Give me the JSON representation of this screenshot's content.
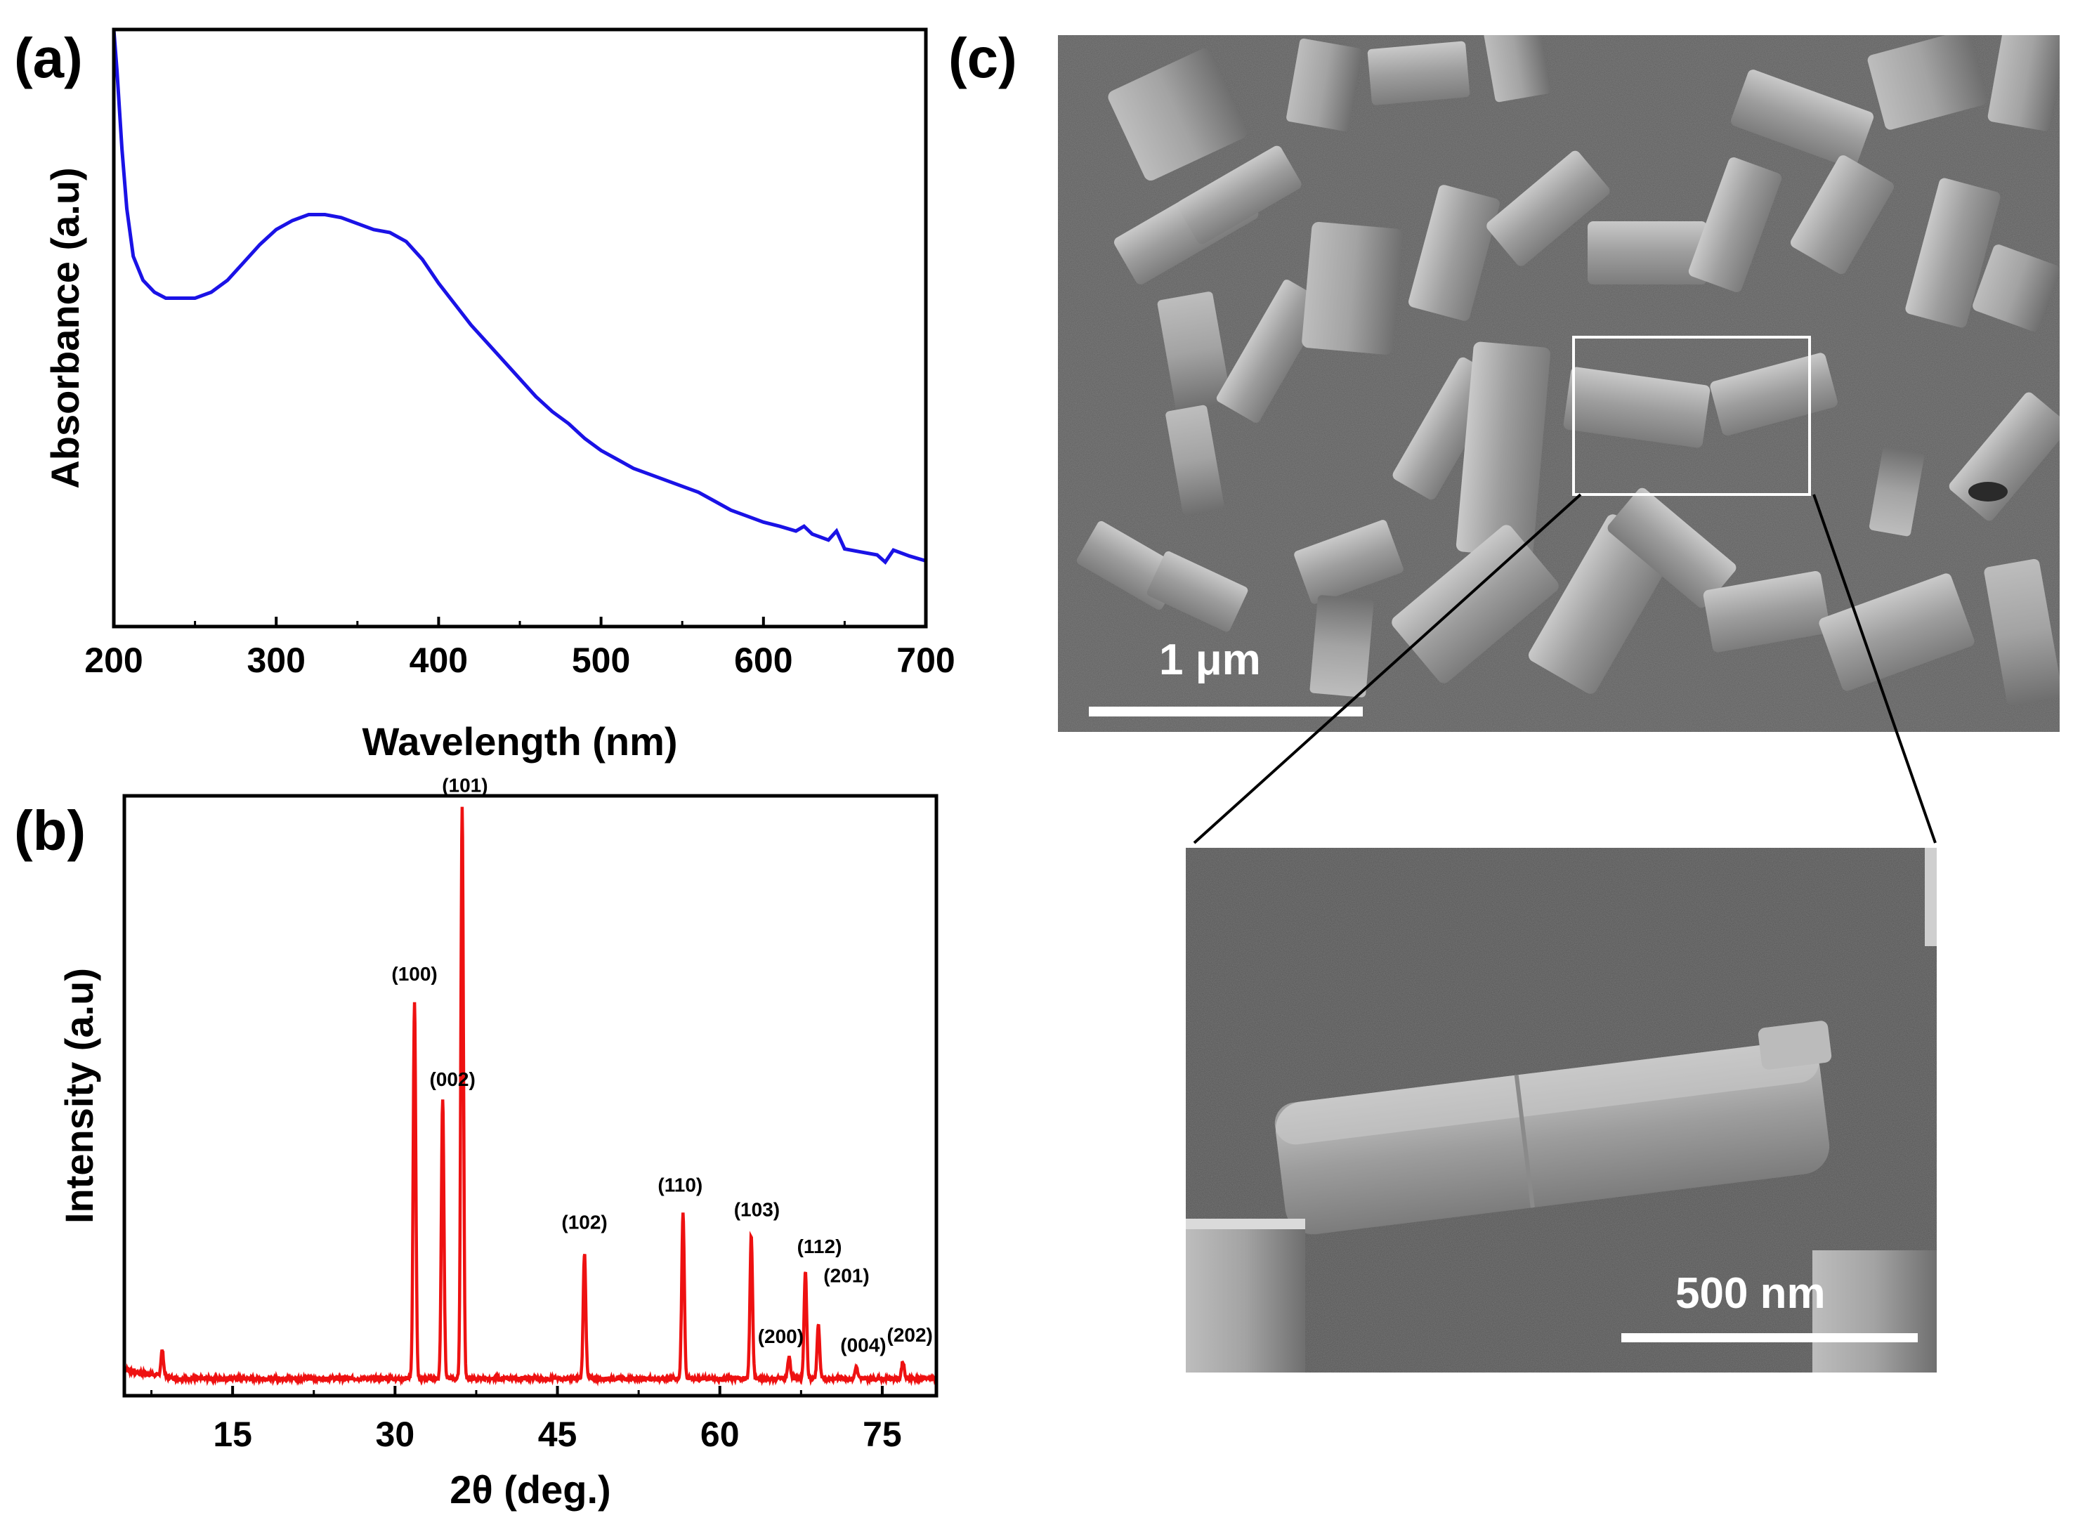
{
  "figure": {
    "panels": [
      "(a)",
      "(b)",
      "(c)"
    ]
  },
  "chart_data": [
    {
      "type": "line",
      "panel": "(a)",
      "xlabel": "Wavelength (nm)",
      "ylabel": "Absorbance (a.u)",
      "xlim": [
        200,
        700
      ],
      "ylim": [
        0,
        1
      ],
      "xticks": [
        200,
        300,
        400,
        500,
        600,
        700
      ],
      "y_tick_labels": false,
      "color": "#1a12e6",
      "series": [
        {
          "x": [
            200,
            202,
            205,
            208,
            212,
            218,
            225,
            232,
            240,
            250,
            260,
            270,
            280,
            290,
            300,
            310,
            320,
            330,
            340,
            350,
            360,
            370,
            380,
            390,
            400,
            410,
            420,
            430,
            440,
            450,
            460,
            470,
            480,
            490,
            500,
            510,
            520,
            530,
            540,
            550,
            560,
            570,
            580,
            590,
            600,
            610,
            620,
            625,
            630,
            640,
            645,
            650,
            660,
            670,
            675,
            680,
            690,
            700
          ],
          "y": [
            1.0,
            0.93,
            0.8,
            0.7,
            0.62,
            0.58,
            0.56,
            0.55,
            0.55,
            0.55,
            0.56,
            0.58,
            0.61,
            0.64,
            0.665,
            0.68,
            0.69,
            0.69,
            0.685,
            0.675,
            0.665,
            0.66,
            0.645,
            0.615,
            0.575,
            0.54,
            0.505,
            0.475,
            0.445,
            0.415,
            0.385,
            0.36,
            0.34,
            0.315,
            0.295,
            0.28,
            0.265,
            0.255,
            0.245,
            0.235,
            0.225,
            0.21,
            0.195,
            0.185,
            0.175,
            0.168,
            0.16,
            0.168,
            0.155,
            0.145,
            0.16,
            0.13,
            0.125,
            0.12,
            0.108,
            0.128,
            0.118,
            0.11
          ]
        }
      ]
    },
    {
      "type": "line",
      "panel": "(b)",
      "xlabel": "2θ (deg.)",
      "ylabel": "Intensity (a.u)",
      "xlim": [
        5,
        80
      ],
      "ylim": [
        0,
        1.05
      ],
      "xticks": [
        15,
        30,
        45,
        60,
        75
      ],
      "y_tick_labels": false,
      "color": "#ee1111",
      "baseline": 0.03,
      "peaks": [
        {
          "x": 8.5,
          "y": 0.045,
          "label": ""
        },
        {
          "x": 31.8,
          "y": 0.66,
          "label": "(100)"
        },
        {
          "x": 34.4,
          "y": 0.49,
          "label": "(002)"
        },
        {
          "x": 36.2,
          "y": 1.0,
          "label": "(101)"
        },
        {
          "x": 47.5,
          "y": 0.22,
          "label": "(102)"
        },
        {
          "x": 56.6,
          "y": 0.29,
          "label": "(110)"
        },
        {
          "x": 62.9,
          "y": 0.25,
          "label": "(103)"
        },
        {
          "x": 66.4,
          "y": 0.04,
          "label": "(200)"
        },
        {
          "x": 67.9,
          "y": 0.19,
          "label": "(112)"
        },
        {
          "x": 69.1,
          "y": 0.095,
          "label": "(201)"
        },
        {
          "x": 72.6,
          "y": 0.02,
          "label": "(004)"
        },
        {
          "x": 76.9,
          "y": 0.03,
          "label": "(202)"
        }
      ]
    }
  ],
  "sem": {
    "main": {
      "scale_bar_label": "1 μm"
    },
    "inset": {
      "scale_bar_label": "500 nm"
    }
  }
}
